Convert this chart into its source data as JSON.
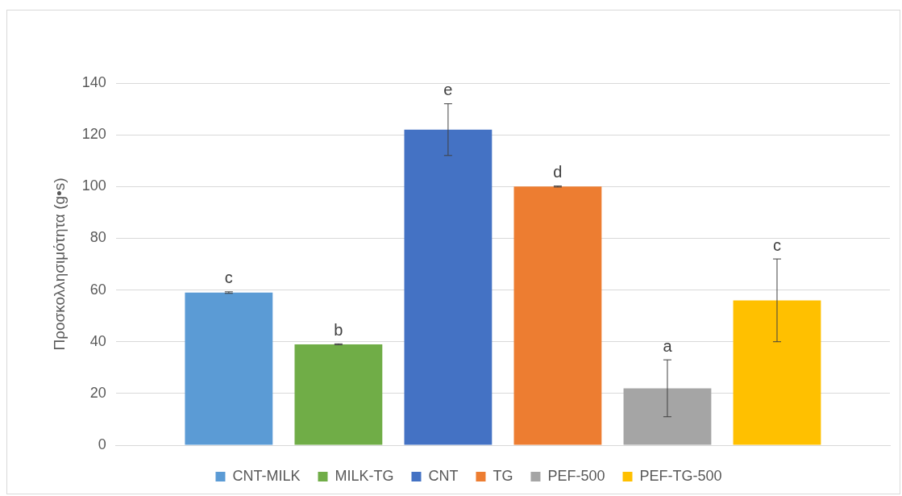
{
  "chart_data": {
    "type": "bar",
    "ylabel": "Προσκολλησιμότητα (g•s)",
    "categories": [
      null
    ],
    "series": [
      {
        "name": "CNT-MILK",
        "color": "#5b9bd5",
        "values": [
          59
        ],
        "errors": [
          0.3
        ]
      },
      {
        "name": "MILK-TG",
        "color": "#70ad47",
        "values": [
          39
        ],
        "errors": [
          0.2
        ]
      },
      {
        "name": "CNT",
        "color": "#4472c4",
        "values": [
          122
        ],
        "errors": [
          10
        ]
      },
      {
        "name": "TG",
        "color": "#ed7d31",
        "values": [
          100
        ],
        "errors": [
          0.2
        ]
      },
      {
        "name": "PEF-500",
        "color": "#a5a5a5",
        "values": [
          22
        ],
        "errors": [
          11
        ]
      },
      {
        "name": "PEF-TG-500",
        "color": "#ffc000",
        "values": [
          56
        ],
        "errors": [
          16
        ]
      }
    ],
    "annotations": [
      "c",
      "b",
      "e",
      "d",
      "a",
      "c"
    ],
    "ylim": [
      0,
      140
    ],
    "yticks": [
      0,
      20,
      40,
      60,
      80,
      100,
      120,
      140
    ],
    "grid": "y",
    "legend": "bottom",
    "tick_labels": "y"
  }
}
